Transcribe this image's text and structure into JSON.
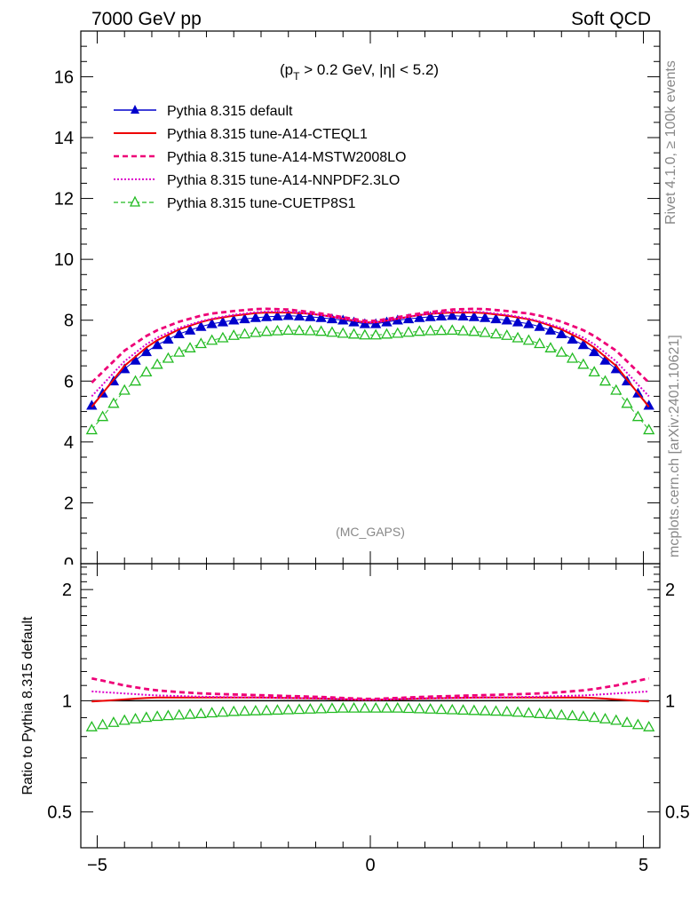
{
  "header": {
    "left": "7000 GeV pp",
    "right": "Soft QCD"
  },
  "side": {
    "rivet": "Rivet 4.1.0, ≥ 100k events",
    "mcplots": "mcplots.cern.ch [arXiv:2401.10621]"
  },
  "cut": {
    "pre": "(p",
    "sub": "T",
    "post": " > 0.2 GeV, |η| < 5.2)"
  },
  "analysis": "(MC_GAPS)",
  "ratio_ylabel": "Ratio to Pythia 8.315 default",
  "colors": {
    "default": "#0000cc",
    "cteql1": "#ee0000",
    "mstw": "#ee0077",
    "nnpdf": "#dd00cc",
    "cuetp8s1": "#22bb22"
  },
  "chart_data": [
    {
      "type": "line",
      "panel": "main",
      "xlim": [
        -5.3,
        5.3
      ],
      "ylim": [
        0,
        17.5
      ],
      "yticks": [
        2,
        4,
        6,
        8,
        10,
        12,
        14,
        16
      ],
      "yticklabels": [
        "2",
        "4",
        "6",
        "8",
        "10",
        "12",
        "14",
        "16"
      ],
      "bottom_tick_label": "0",
      "xlabel": "",
      "ylabel": "",
      "legend_position": "top-left",
      "series": [
        {
          "key": "default",
          "name": "Pythia 8.315 default",
          "style": "blue-filled-triangles",
          "points": [
            [
              -5.1,
              5.2
            ],
            [
              -4.5,
              6.4
            ],
            [
              -4.0,
              7.1
            ],
            [
              -3.5,
              7.55
            ],
            [
              -3.0,
              7.85
            ],
            [
              -2.5,
              8.0
            ],
            [
              -2.0,
              8.1
            ],
            [
              -1.5,
              8.15
            ],
            [
              -1.0,
              8.1
            ],
            [
              -0.5,
              8.0
            ],
            [
              0.0,
              7.85
            ],
            [
              0.5,
              8.0
            ],
            [
              1.0,
              8.1
            ],
            [
              1.5,
              8.15
            ],
            [
              2.0,
              8.1
            ],
            [
              2.5,
              8.0
            ],
            [
              3.0,
              7.85
            ],
            [
              3.5,
              7.55
            ],
            [
              4.0,
              7.1
            ],
            [
              4.5,
              6.4
            ],
            [
              5.1,
              5.2
            ]
          ]
        },
        {
          "key": "cteql1",
          "name": "Pythia 8.315 tune-A14-CTEQL1",
          "style": "red-solid",
          "points": [
            [
              -5.1,
              5.15
            ],
            [
              -4.5,
              6.5
            ],
            [
              -4.0,
              7.25
            ],
            [
              -3.5,
              7.7
            ],
            [
              -3.0,
              8.0
            ],
            [
              -2.5,
              8.15
            ],
            [
              -2.0,
              8.25
            ],
            [
              -1.5,
              8.25
            ],
            [
              -1.0,
              8.2
            ],
            [
              -0.5,
              8.05
            ],
            [
              0.0,
              7.9
            ],
            [
              0.5,
              8.05
            ],
            [
              1.0,
              8.2
            ],
            [
              1.5,
              8.25
            ],
            [
              2.0,
              8.25
            ],
            [
              2.5,
              8.15
            ],
            [
              3.0,
              8.0
            ],
            [
              3.5,
              7.7
            ],
            [
              4.0,
              7.25
            ],
            [
              4.5,
              6.5
            ],
            [
              5.1,
              5.15
            ]
          ]
        },
        {
          "key": "mstw",
          "name": "Pythia 8.315 tune-A14-MSTW2008LO",
          "style": "pink-dashed",
          "points": [
            [
              -5.1,
              5.95
            ],
            [
              -4.5,
              7.0
            ],
            [
              -4.0,
              7.6
            ],
            [
              -3.5,
              7.95
            ],
            [
              -3.0,
              8.2
            ],
            [
              -2.5,
              8.3
            ],
            [
              -2.0,
              8.38
            ],
            [
              -1.5,
              8.35
            ],
            [
              -1.0,
              8.25
            ],
            [
              -0.5,
              8.1
            ],
            [
              0.0,
              7.95
            ],
            [
              0.5,
              8.1
            ],
            [
              1.0,
              8.25
            ],
            [
              1.5,
              8.35
            ],
            [
              2.0,
              8.38
            ],
            [
              2.5,
              8.3
            ],
            [
              3.0,
              8.2
            ],
            [
              3.5,
              7.95
            ],
            [
              4.0,
              7.6
            ],
            [
              4.5,
              7.0
            ],
            [
              5.1,
              5.95
            ]
          ]
        },
        {
          "key": "nnpdf",
          "name": "Pythia 8.315 tune-A14-NNPDF2.3LO",
          "style": "magenta-dotted",
          "points": [
            [
              -5.1,
              5.5
            ],
            [
              -4.5,
              6.65
            ],
            [
              -4.0,
              7.35
            ],
            [
              -3.5,
              7.75
            ],
            [
              -3.0,
              8.02
            ],
            [
              -2.5,
              8.18
            ],
            [
              -2.0,
              8.28
            ],
            [
              -1.5,
              8.28
            ],
            [
              -1.0,
              8.2
            ],
            [
              -0.5,
              8.05
            ],
            [
              0.0,
              7.9
            ],
            [
              0.5,
              8.05
            ],
            [
              1.0,
              8.2
            ],
            [
              1.5,
              8.28
            ],
            [
              2.0,
              8.28
            ],
            [
              2.5,
              8.18
            ],
            [
              3.0,
              8.02
            ],
            [
              3.5,
              7.75
            ],
            [
              4.0,
              7.35
            ],
            [
              4.5,
              6.65
            ],
            [
              5.1,
              5.5
            ]
          ]
        },
        {
          "key": "cuetp8s1",
          "name": "Pythia 8.315 tune-CUETP8S1",
          "style": "green-open-triangles-dashed",
          "points": [
            [
              -5.1,
              4.4
            ],
            [
              -4.5,
              5.7
            ],
            [
              -4.0,
              6.45
            ],
            [
              -3.5,
              6.95
            ],
            [
              -3.0,
              7.3
            ],
            [
              -2.5,
              7.5
            ],
            [
              -2.0,
              7.62
            ],
            [
              -1.5,
              7.67
            ],
            [
              -1.0,
              7.65
            ],
            [
              -0.5,
              7.57
            ],
            [
              0.0,
              7.5
            ],
            [
              0.5,
              7.57
            ],
            [
              1.0,
              7.65
            ],
            [
              1.5,
              7.67
            ],
            [
              2.0,
              7.62
            ],
            [
              2.5,
              7.5
            ],
            [
              3.0,
              7.3
            ],
            [
              3.5,
              6.95
            ],
            [
              4.0,
              6.45
            ],
            [
              4.5,
              5.7
            ],
            [
              5.1,
              4.4
            ]
          ]
        }
      ]
    },
    {
      "type": "line",
      "panel": "ratio",
      "xlim": [
        -5.3,
        5.3
      ],
      "ylim": [
        0.4,
        2.35
      ],
      "yscale": "log",
      "yticks": [
        0.5,
        1,
        2
      ],
      "yticklabels": [
        "0.5",
        "1",
        "2"
      ],
      "xticks": [
        -5,
        0,
        5
      ],
      "xticklabels": [
        "−5",
        "0",
        "5"
      ],
      "ylabel": "Ratio to Pythia 8.315 default",
      "series": [
        {
          "key": "default",
          "name": "Pythia 8.315 default",
          "style": "black-reference",
          "points": [
            [
              -5.1,
              1.0
            ],
            [
              5.1,
              1.0
            ]
          ]
        },
        {
          "key": "cteql1",
          "name": "Pythia 8.315 tune-A14-CTEQL1",
          "style": "red-solid",
          "points": [
            [
              -5.1,
              0.995
            ],
            [
              -4.0,
              1.02
            ],
            [
              -3.0,
              1.02
            ],
            [
              -2.0,
              1.02
            ],
            [
              -1.0,
              1.015
            ],
            [
              0.0,
              1.005
            ],
            [
              1.0,
              1.015
            ],
            [
              2.0,
              1.02
            ],
            [
              3.0,
              1.02
            ],
            [
              4.0,
              1.02
            ],
            [
              5.1,
              0.995
            ]
          ]
        },
        {
          "key": "mstw",
          "name": "Pythia 8.315 tune-A14-MSTW2008LO",
          "style": "pink-dashed",
          "points": [
            [
              -5.1,
              1.15
            ],
            [
              -4.5,
              1.1
            ],
            [
              -4.0,
              1.07
            ],
            [
              -3.5,
              1.055
            ],
            [
              -3.0,
              1.045
            ],
            [
              -2.5,
              1.04
            ],
            [
              -2.0,
              1.035
            ],
            [
              -1.0,
              1.025
            ],
            [
              0.0,
              1.01
            ],
            [
              1.0,
              1.025
            ],
            [
              2.0,
              1.035
            ],
            [
              2.5,
              1.04
            ],
            [
              3.0,
              1.045
            ],
            [
              3.5,
              1.055
            ],
            [
              4.0,
              1.07
            ],
            [
              4.5,
              1.1
            ],
            [
              5.1,
              1.15
            ]
          ]
        },
        {
          "key": "nnpdf",
          "name": "Pythia 8.315 tune-A14-NNPDF2.3LO",
          "style": "magenta-dotted",
          "points": [
            [
              -5.1,
              1.06
            ],
            [
              -4.0,
              1.035
            ],
            [
              -3.0,
              1.025
            ],
            [
              -2.0,
              1.02
            ],
            [
              -1.0,
              1.015
            ],
            [
              0.0,
              1.005
            ],
            [
              1.0,
              1.015
            ],
            [
              2.0,
              1.02
            ],
            [
              3.0,
              1.025
            ],
            [
              4.0,
              1.035
            ],
            [
              5.1,
              1.06
            ]
          ]
        },
        {
          "key": "cuetp8s1",
          "name": "Pythia 8.315 tune-CUETP8S1",
          "style": "green-open-triangles",
          "points": [
            [
              -5.1,
              0.85
            ],
            [
              -4.5,
              0.885
            ],
            [
              -4.0,
              0.905
            ],
            [
              -3.5,
              0.915
            ],
            [
              -3.0,
              0.925
            ],
            [
              -2.5,
              0.935
            ],
            [
              -2.0,
              0.94
            ],
            [
              -1.5,
              0.945
            ],
            [
              -1.0,
              0.95
            ],
            [
              -0.5,
              0.955
            ],
            [
              0.0,
              0.955
            ],
            [
              0.5,
              0.955
            ],
            [
              1.0,
              0.95
            ],
            [
              1.5,
              0.945
            ],
            [
              2.0,
              0.94
            ],
            [
              2.5,
              0.935
            ],
            [
              3.0,
              0.925
            ],
            [
              3.5,
              0.915
            ],
            [
              4.0,
              0.905
            ],
            [
              4.5,
              0.885
            ],
            [
              5.1,
              0.85
            ]
          ]
        }
      ]
    }
  ]
}
